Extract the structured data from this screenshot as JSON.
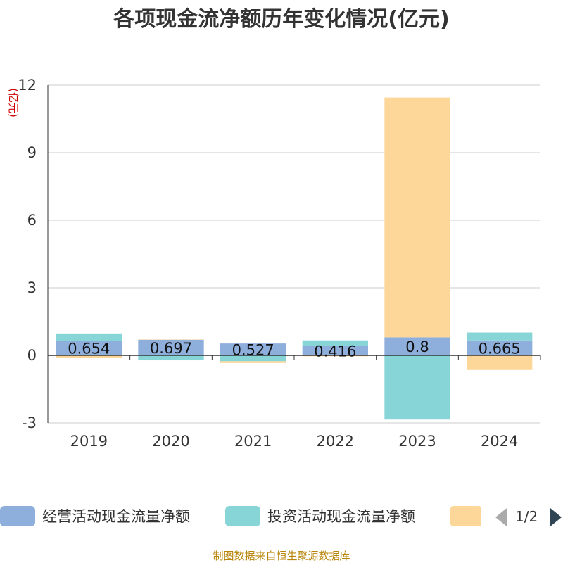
{
  "chart_data": {
    "type": "bar",
    "stacked": true,
    "title": "各项现金流净额历年变化情况(亿元)",
    "ylabel": "(亿元)",
    "xlabel": "",
    "categories": [
      "2019",
      "2020",
      "2021",
      "2022",
      "2023",
      "2024"
    ],
    "ylim": [
      -3,
      12
    ],
    "yticks": [
      -3,
      0,
      3,
      6,
      9,
      12
    ],
    "ytick_labels": [
      "-3",
      "0",
      "3",
      "6",
      "9",
      "12"
    ],
    "grid": true,
    "legend_position": "bottom",
    "series": [
      {
        "name": "经营活动现金流量净额",
        "color": "#8eaedc",
        "values": [
          0.654,
          0.697,
          0.527,
          0.416,
          0.8,
          0.665
        ],
        "labels": [
          "0.654",
          "0.697",
          "0.527",
          "0.416",
          "0.8",
          "0.665"
        ]
      },
      {
        "name": "投资活动现金流量净额",
        "color": "#88d5d8",
        "values": [
          0.32,
          -0.22,
          -0.26,
          0.25,
          -2.85,
          0.35
        ]
      },
      {
        "name": "",
        "color": "#fdd79a",
        "values": [
          -0.1,
          0.01,
          -0.08,
          -0.04,
          10.65,
          -0.65
        ]
      }
    ]
  },
  "legend": {
    "page_indicator": "1/2",
    "prev_icon_color": "#aaaaaa",
    "next_icon_color": "#2f4554"
  },
  "source_note": "制图数据来自恒生聚源数据库"
}
